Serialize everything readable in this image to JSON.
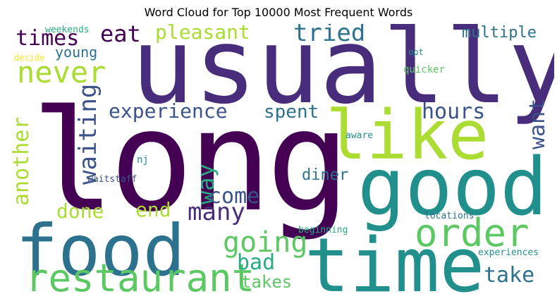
{
  "title": "Word Cloud for Top 10000 Most Frequent Words",
  "words": {
    "usually": "usually",
    "long": "long",
    "good": "good",
    "food": "food",
    "time": "time",
    "like": "like",
    "order": "order",
    "restaurant": "restaurant",
    "never": "never",
    "times": "times",
    "eat": "eat",
    "pleasant": "pleasant",
    "tried": "tried",
    "multiple": "multiple",
    "young": "young",
    "weekends": "weekends",
    "decide": "decide",
    "opt": "opt",
    "quicker": "quicker",
    "experience": "experience",
    "spent": "spent",
    "hours": "hours",
    "want": "want",
    "waiting": "waiting",
    "another": "another",
    "way": "way",
    "come": "come",
    "many": "many",
    "done": "done",
    "end": "end",
    "diner": "diner",
    "going": "going",
    "bad": "bad",
    "takes": "takes",
    "take": "take",
    "aware": "aware",
    "nj": "nj",
    "waitstaff": "waitstaff",
    "beginning": "beginning",
    "locations": "locations",
    "experiences": "experiences"
  },
  "colors": {
    "dark_purple": "#440154",
    "indigo": "#472d7b",
    "slate_blue": "#3b528b",
    "blue": "#2c728e",
    "teal": "#21908d",
    "green_teal": "#27ad81",
    "green": "#5cc863",
    "lime": "#aadc32",
    "yellow": "#fde725"
  }
}
